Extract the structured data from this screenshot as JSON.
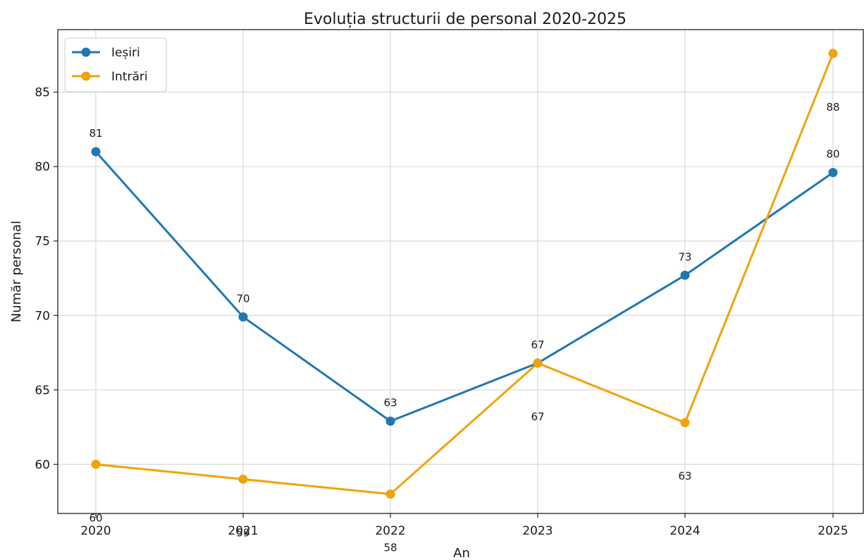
{
  "chart_data": {
    "type": "line",
    "title": "Evoluția structurii de personal 2020-2025",
    "xlabel": "An",
    "ylabel": "Număr personal",
    "categories": [
      "2020",
      "2021",
      "2022",
      "2023",
      "2024",
      "2025"
    ],
    "ylim": [
      56.7,
      89.2
    ],
    "yticks": [
      60,
      65,
      70,
      75,
      80,
      85
    ],
    "grid": true,
    "legend_position": "top-left",
    "series": [
      {
        "name": "Ieșiri",
        "color": "#1f77b4",
        "values": [
          81,
          69.9,
          62.9,
          66.8,
          72.7,
          79.6
        ],
        "labels": [
          "81",
          "70",
          "63",
          "67",
          "73",
          "80"
        ]
      },
      {
        "name": "Intrări",
        "color": "#f0a30a",
        "values": [
          60,
          59,
          58,
          66.8,
          62.8,
          87.6
        ],
        "labels": [
          "60",
          "59",
          "58",
          "67",
          "63",
          "88"
        ]
      }
    ]
  }
}
